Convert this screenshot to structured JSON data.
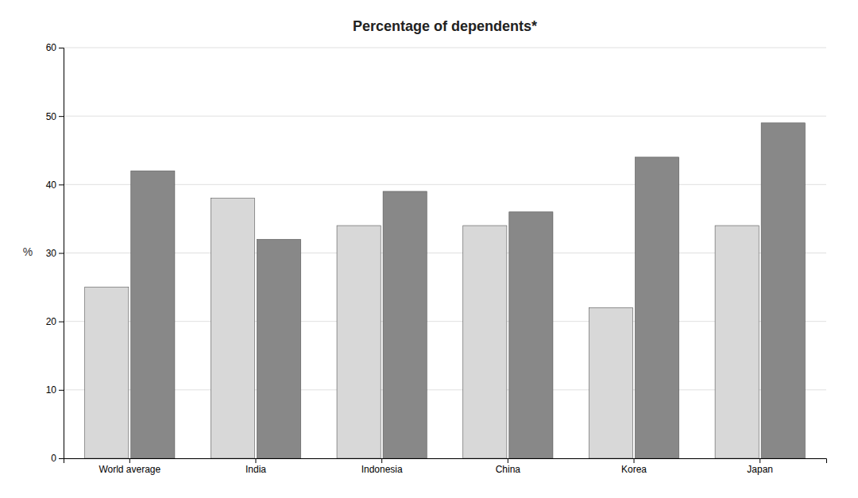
{
  "chart_data": {
    "type": "bar",
    "title": "Percentage of dependents*",
    "ylabel": "%",
    "categories": [
      "World average",
      "India",
      "Indonesia",
      "China",
      "Korea",
      "Japan"
    ],
    "series": [
      {
        "color": "#d8d8d8",
        "values": [
          25,
          38,
          34,
          34,
          22,
          34
        ]
      },
      {
        "color": "#888888",
        "values": [
          42,
          32,
          39,
          36,
          44,
          49
        ]
      }
    ],
    "ylim": [
      0,
      60
    ],
    "yticks": [
      0,
      10,
      20,
      30,
      40,
      50,
      60
    ],
    "grid": true
  }
}
